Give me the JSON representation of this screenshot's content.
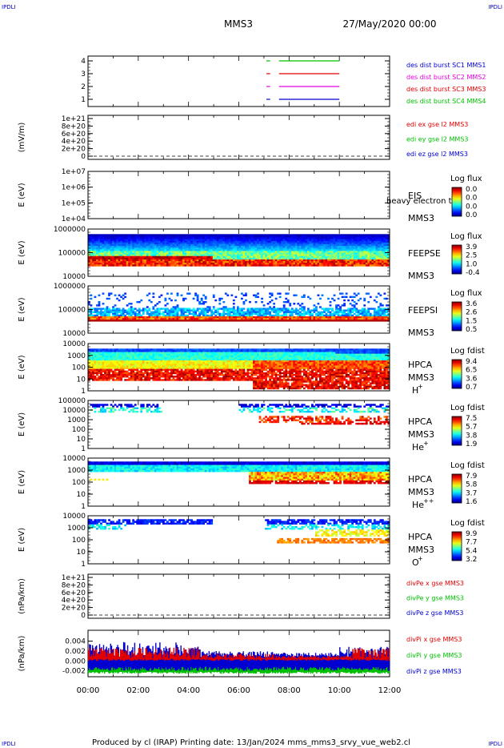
{
  "header": {
    "corner_tl": "IPDLI",
    "corner_tr": "IPDLI",
    "corner_bl": "IPDLI",
    "corner_br": "IPDLI",
    "spacecraft": "MMS3",
    "date": "27/May/2020 00:00",
    "footer": "Produced by cl (IRAP)   Printing date: 13/Jan/2024   mms_mms3_srvy_vue_web2.cl"
  },
  "colors": {
    "red": "#e00000",
    "green": "#00c000",
    "blue": "#0000d0",
    "magenta": "#e000e0"
  },
  "chart_data": {
    "type": "heatmap",
    "x_ticks": [
      "00:00",
      "02:00",
      "04:00",
      "06:00",
      "08:00",
      "10:00",
      "12:00"
    ],
    "panels": [
      {
        "kind": "burst",
        "y_ticks": [
          "4",
          "3",
          "2",
          "1"
        ],
        "legend": [
          {
            "text": "des dist burst SC1 MMS1",
            "color": "#0000d0"
          },
          {
            "text": "des dist burst SC2 MMS2",
            "color": "#e000e0"
          },
          {
            "text": "des dist burst SC3 MMS3",
            "color": "#e00000"
          },
          {
            "text": "des dist burst SC4 MMS4",
            "color": "#00c000"
          }
        ],
        "intervals_hours": [
          {
            "sc": 4,
            "color": "#00c000",
            "segments": [
              [
                7.1,
                7.25
              ],
              [
                7.6,
                10.0
              ]
            ]
          },
          {
            "sc": 3,
            "color": "#e00000",
            "segments": [
              [
                7.1,
                7.25
              ],
              [
                7.6,
                10.0
              ]
            ]
          },
          {
            "sc": 2,
            "color": "#e000e0",
            "segments": [
              [
                7.1,
                7.25
              ],
              [
                7.6,
                10.0
              ]
            ]
          },
          {
            "sc": 1,
            "color": "#0000d0",
            "segments": [
              [
                7.1,
                7.25
              ],
              [
                7.6,
                10.0
              ]
            ]
          }
        ]
      },
      {
        "kind": "line",
        "ylabel": "(mV/m)",
        "y_ticks": [
          "1e+21",
          "8e+20",
          "6e+20",
          "4e+20",
          "2e+20",
          "0"
        ],
        "legend": [
          {
            "text": "edi ex gse l2 MMS3",
            "color": "#e00000"
          },
          {
            "text": "edi ey gse l2 MMS3",
            "color": "#00c000"
          },
          {
            "text": "edi ez gse l2 MMS3",
            "color": "#0000d0"
          }
        ]
      },
      {
        "kind": "spectro",
        "ylabel": "E (eV)",
        "y_ticks": [
          "1e+07",
          "1e+06",
          "1e+05",
          "1e+04"
        ],
        "instrument": "EIS",
        "instrument2": "MMS3",
        "overlay_text": "heavy electron to",
        "cbar_title": "Log flux",
        "cbar_ticks": [
          "0.0",
          "0.0",
          "0.0",
          "0.0"
        ],
        "profile": "empty"
      },
      {
        "kind": "spectro",
        "ylabel": "E (eV)",
        "y_ticks": [
          "1000000",
          "100000",
          "10000"
        ],
        "instrument": "FEEPSE",
        "instrument2": "MMS3",
        "cbar_title": "Log flux",
        "cbar_ticks": [
          "3.9",
          "2.5",
          "1.0",
          "-0.4"
        ],
        "profile": "feepse"
      },
      {
        "kind": "spectro",
        "ylabel": "E (eV)",
        "y_ticks": [
          "1000000",
          "100000",
          "10000"
        ],
        "instrument": "FEEPSI",
        "instrument2": "MMS3",
        "cbar_title": "Log flux",
        "cbar_ticks": [
          "3.6",
          "2.6",
          "1.5",
          "0.5"
        ],
        "profile": "feepsi"
      },
      {
        "kind": "spectro",
        "ylabel": "E (eV)",
        "y_ticks": [
          "10000",
          "1000",
          "100",
          "10",
          "1"
        ],
        "instrument": "HPCA",
        "instrument2": "MMS3",
        "species": "H",
        "species_sup": "+",
        "cbar_title": "Log fdist",
        "cbar_ticks": [
          "9.4",
          "6.5",
          "3.6",
          "0.7"
        ],
        "profile": "hplus"
      },
      {
        "kind": "spectro",
        "ylabel": "E (eV)",
        "y_ticks": [
          "100000",
          "10000",
          "1000",
          "100",
          "10",
          "1"
        ],
        "instrument": "HPCA",
        "instrument2": "MMS3",
        "species": "He",
        "species_sup": "+",
        "cbar_title": "Log fdist",
        "cbar_ticks": [
          "7.5",
          "5.7",
          "3.8",
          "1.9"
        ],
        "profile": "heplus"
      },
      {
        "kind": "spectro",
        "ylabel": "E (eV)",
        "y_ticks": [
          "10000",
          "1000",
          "100",
          "10",
          "1"
        ],
        "instrument": "HPCA",
        "instrument2": "MMS3",
        "species": "He",
        "species_sup": "++",
        "cbar_title": "Log fdist",
        "cbar_ticks": [
          "7.9",
          "5.8",
          "3.7",
          "1.6"
        ],
        "profile": "hepp"
      },
      {
        "kind": "spectro",
        "ylabel": "E (eV)",
        "y_ticks": [
          "10000",
          "1000",
          "100",
          "10",
          "1"
        ],
        "instrument": "HPCA",
        "instrument2": "MMS3",
        "species": "O",
        "species_sup": "+",
        "cbar_title": "Log fdist",
        "cbar_ticks": [
          "9.9",
          "7.7",
          "5.4",
          "3.2"
        ],
        "profile": "oplus"
      },
      {
        "kind": "line",
        "ylabel": "(nPa/km)",
        "y_ticks": [
          "1e+21",
          "8e+20",
          "6e+20",
          "4e+20",
          "2e+20",
          "0"
        ],
        "legend": [
          {
            "text": "divPe x gse MMS3",
            "color": "#e00000"
          },
          {
            "text": "divPe y gse MMS3",
            "color": "#00c000"
          },
          {
            "text": "divPe z gse MMS3",
            "color": "#0000d0"
          }
        ]
      },
      {
        "kind": "divpi",
        "ylabel": "(nPa/km)",
        "y_ticks": [
          "0.004",
          "0.002",
          "0.000",
          "-0.002"
        ],
        "ylim": [
          -0.0032,
          0.0062
        ],
        "legend": [
          {
            "text": "divPi x gse MMS3",
            "color": "#e00000"
          },
          {
            "text": "divPi y gse MMS3",
            "color": "#00c000"
          },
          {
            "text": "divPi z gse MMS3",
            "color": "#0000d0"
          }
        ]
      }
    ]
  }
}
